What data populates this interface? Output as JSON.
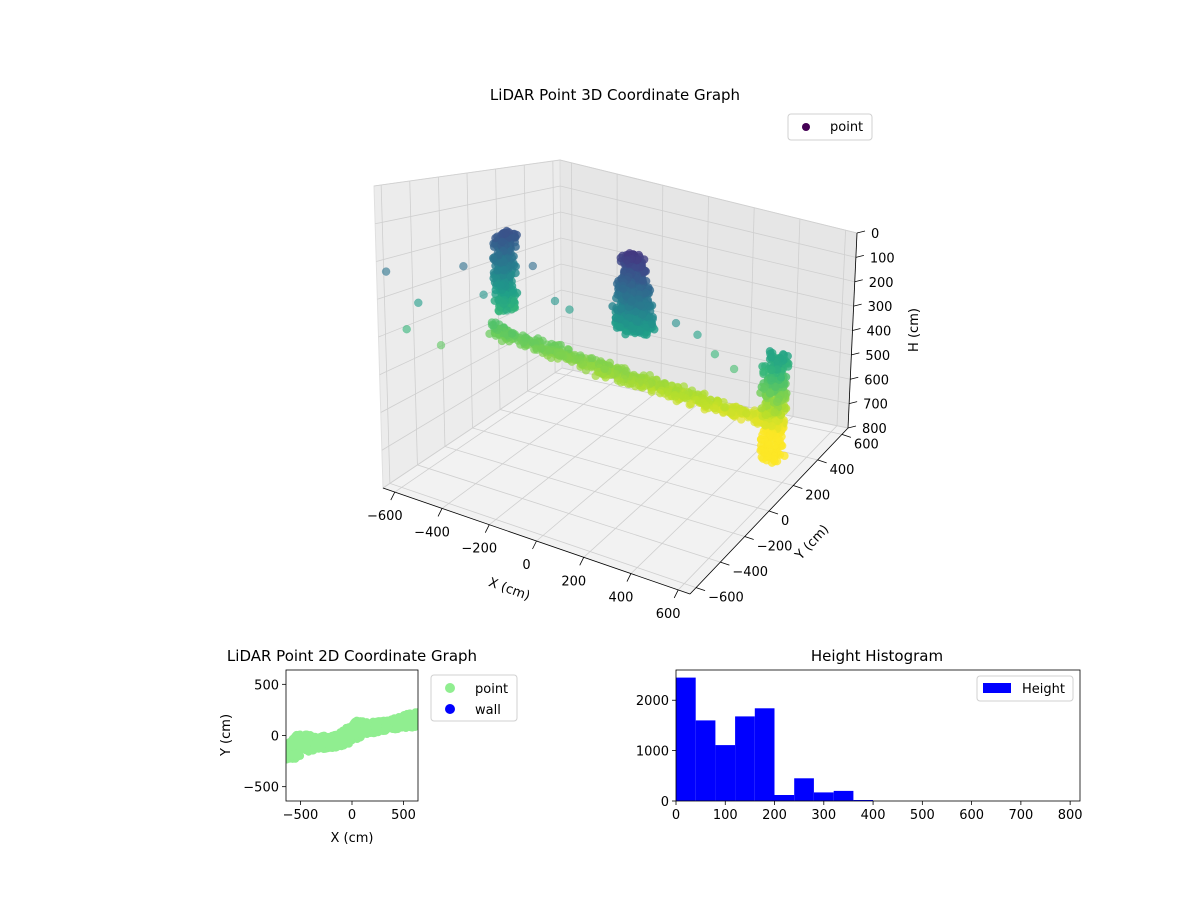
{
  "chart_data": [
    {
      "type": "scatter",
      "subtype": "3d",
      "title": "LiDAR Point 3D Coordinate Graph",
      "xlabel": "X (cm)",
      "ylabel": "Y (cm)",
      "zlabel": "H (cm)",
      "xlim": [
        -650,
        650
      ],
      "ylim": [
        -650,
        650
      ],
      "zlim": [
        0,
        800
      ],
      "z_inverted": true,
      "xticks": [
        "−600",
        "−400",
        "−200",
        "0",
        "200",
        "400",
        "600"
      ],
      "yticks": [
        "−600",
        "−400",
        "−200",
        "0",
        "200",
        "400",
        "600"
      ],
      "zticks": [
        "0",
        "100",
        "200",
        "300",
        "400",
        "500",
        "600",
        "700",
        "800"
      ],
      "colormap": "viridis",
      "grid": true,
      "legend": {
        "placement": "top-right",
        "entries": [
          {
            "name": "point",
            "color": "#440154"
          }
        ]
      },
      "clusters": [
        {
          "kind": "tall-object",
          "x_range": [
            -60,
            160
          ],
          "y_range": [
            -80,
            80
          ],
          "h_range": [
            100,
            340
          ]
        },
        {
          "kind": "left-wall",
          "x_range": [
            -520,
            -470
          ],
          "y_range": [
            -50,
            50
          ],
          "h_range": [
            150,
            400
          ]
        },
        {
          "kind": "right-wall",
          "x_range": [
            540,
            620
          ],
          "y_range": [
            100,
            200
          ],
          "h_range": [
            350,
            700
          ]
        },
        {
          "kind": "floor-strip",
          "from": [
            -520,
            -60,
            450
          ],
          "to": [
            620,
            150,
            580
          ]
        }
      ]
    },
    {
      "type": "scatter",
      "title": "LiDAR Point 2D Coordinate Graph",
      "xlabel": "X (cm)",
      "ylabel": "Y (cm)",
      "xlim": [
        -640,
        640
      ],
      "ylim": [
        -640,
        640
      ],
      "xticks": [
        "−500",
        "0",
        "500"
      ],
      "yticks": [
        "−500",
        "0",
        "500"
      ],
      "legend": {
        "placement": "outside-right",
        "entries": [
          {
            "name": "point",
            "color": "#90ee90"
          },
          {
            "name": "wall",
            "color": "#0000ff"
          }
        ]
      },
      "band": {
        "x": [
          -640,
          -550,
          -450,
          -350,
          -250,
          -150,
          -50,
          50,
          150,
          250,
          350,
          450,
          550,
          640
        ],
        "y_low": [
          -260,
          -230,
          -170,
          -140,
          -130,
          -120,
          -90,
          -40,
          0,
          30,
          50,
          60,
          70,
          80
        ],
        "y_high": [
          -90,
          10,
          15,
          10,
          0,
          10,
          80,
          150,
          130,
          140,
          150,
          180,
          220,
          230
        ]
      }
    },
    {
      "type": "bar",
      "subtype": "histogram",
      "title": "Height Histogram",
      "xlabel": "",
      "ylabel": "",
      "bin_edges": [
        0,
        40,
        80,
        120,
        160,
        200,
        240,
        280,
        320,
        360,
        400,
        440,
        480,
        520,
        560,
        600,
        640,
        680,
        720,
        760,
        800
      ],
      "values": [
        2450,
        1600,
        1110,
        1680,
        1840,
        120,
        450,
        170,
        200,
        20,
        0,
        0,
        0,
        0,
        0,
        0,
        0,
        0,
        0,
        0
      ],
      "xlim": [
        0,
        820
      ],
      "ylim": [
        0,
        2600
      ],
      "xticks": [
        "0",
        "100",
        "200",
        "300",
        "400",
        "500",
        "600",
        "700",
        "800"
      ],
      "yticks": [
        "0",
        "1000",
        "2000"
      ],
      "color": "#0000ff",
      "legend": {
        "placement": "top-right",
        "entries": [
          {
            "name": "Height",
            "color": "#0000ff"
          }
        ]
      }
    }
  ]
}
